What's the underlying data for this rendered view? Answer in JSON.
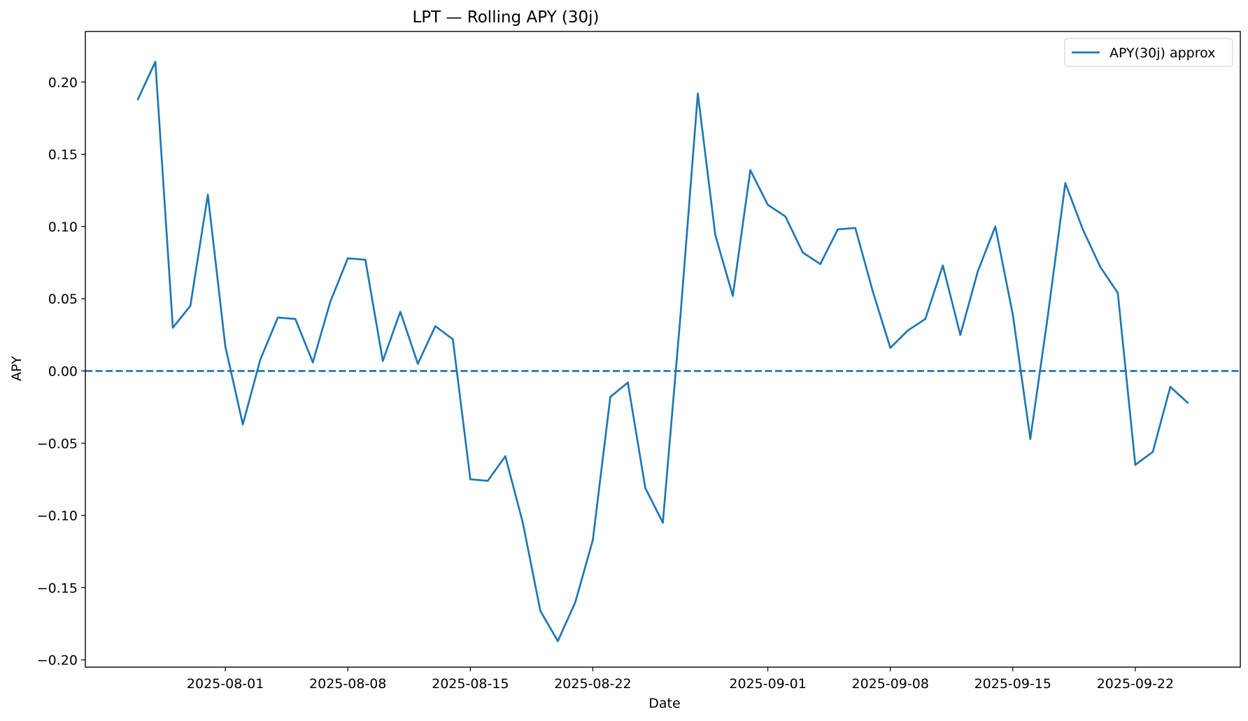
{
  "chart_data": {
    "type": "line",
    "title": "LPT — Rolling APY (30j)",
    "xlabel": "Date",
    "ylabel": "APY",
    "xlim": [
      "2025-07-24",
      "2025-09-28"
    ],
    "ylim": [
      -0.205,
      0.235
    ],
    "x_ticks": [
      "2025-08-01",
      "2025-08-08",
      "2025-08-15",
      "2025-08-22",
      "2025-09-01",
      "2025-09-08",
      "2025-09-15",
      "2025-09-22"
    ],
    "y_ticks": [
      0.2,
      0.15,
      0.1,
      0.05,
      0.0,
      -0.05,
      -0.1,
      -0.15,
      -0.2
    ],
    "y_tick_labels": [
      "0.20",
      "0.15",
      "0.10",
      "0.05",
      "0.00",
      "−0.05",
      "−0.10",
      "−0.15",
      "−0.20"
    ],
    "legend_position": "top-right",
    "line_color": "#1f77b4",
    "reference_line": {
      "y": 0.0,
      "style": "dashed",
      "color": "#1f77b4"
    },
    "series": [
      {
        "name": "APY(30j) approx",
        "x": [
          "2025-07-27",
          "2025-07-28",
          "2025-07-29",
          "2025-07-30",
          "2025-07-31",
          "2025-08-01",
          "2025-08-02",
          "2025-08-03",
          "2025-08-04",
          "2025-08-05",
          "2025-08-06",
          "2025-08-07",
          "2025-08-08",
          "2025-08-09",
          "2025-08-10",
          "2025-08-11",
          "2025-08-12",
          "2025-08-13",
          "2025-08-14",
          "2025-08-15",
          "2025-08-16",
          "2025-08-17",
          "2025-08-18",
          "2025-08-19",
          "2025-08-20",
          "2025-08-21",
          "2025-08-22",
          "2025-08-23",
          "2025-08-24",
          "2025-08-25",
          "2025-08-26",
          "2025-08-27",
          "2025-08-28",
          "2025-08-29",
          "2025-08-30",
          "2025-08-31",
          "2025-09-01",
          "2025-09-02",
          "2025-09-03",
          "2025-09-04",
          "2025-09-05",
          "2025-09-06",
          "2025-09-07",
          "2025-09-08",
          "2025-09-09",
          "2025-09-10",
          "2025-09-11",
          "2025-09-12",
          "2025-09-13",
          "2025-09-14",
          "2025-09-15",
          "2025-09-16",
          "2025-09-17",
          "2025-09-18",
          "2025-09-19",
          "2025-09-20",
          "2025-09-21",
          "2025-09-22",
          "2025-09-23",
          "2025-09-24",
          "2025-09-25"
        ],
        "y": [
          0.188,
          0.214,
          0.03,
          0.045,
          0.122,
          0.017,
          -0.037,
          0.008,
          0.037,
          0.036,
          0.006,
          0.048,
          0.078,
          0.077,
          0.007,
          0.041,
          0.005,
          0.031,
          0.022,
          -0.075,
          -0.076,
          -0.059,
          -0.105,
          -0.166,
          -0.187,
          -0.16,
          -0.117,
          -0.018,
          -0.008,
          -0.081,
          -0.105,
          0.037,
          0.192,
          0.094,
          0.052,
          0.139,
          0.115,
          0.107,
          0.082,
          0.074,
          0.098,
          0.099,
          0.055,
          0.016,
          0.028,
          0.036,
          0.073,
          0.025,
          0.069,
          0.1,
          0.039,
          -0.047,
          0.038,
          0.13,
          0.098,
          0.072,
          0.054,
          -0.065,
          -0.056,
          -0.011,
          -0.022
        ]
      }
    ]
  }
}
